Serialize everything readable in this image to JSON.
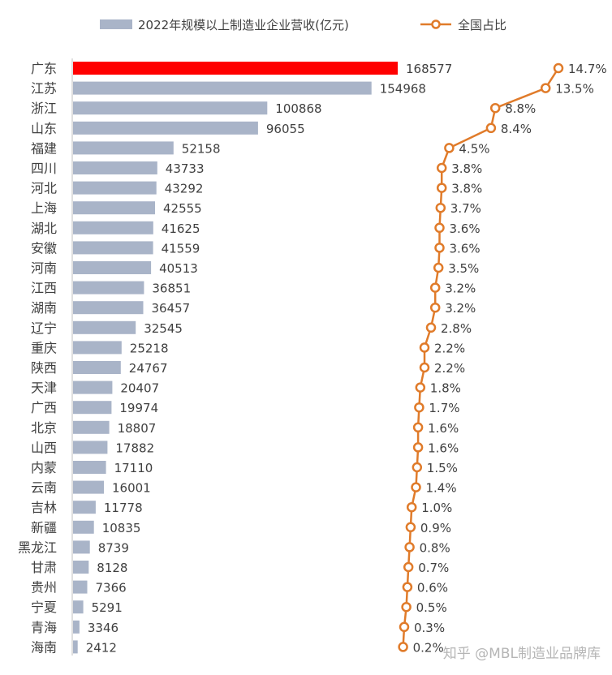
{
  "chart_data": {
    "type": "bar",
    "orientation": "horizontal",
    "categories": [
      "广东",
      "江苏",
      "浙江",
      "山东",
      "福建",
      "四川",
      "河北",
      "上海",
      "湖北",
      "安徽",
      "河南",
      "江西",
      "湖南",
      "辽宁",
      "重庆",
      "陕西",
      "天津",
      "广西",
      "北京",
      "山西",
      "内蒙",
      "云南",
      "吉林",
      "新疆",
      "黑龙江",
      "甘肃",
      "贵州",
      "宁夏",
      "青海",
      "海南"
    ],
    "series": [
      {
        "name": "2022年规模以上制造业企业营收(亿元)",
        "type": "bar",
        "color": "#a9b4c8",
        "highlight_color": "#ff0000",
        "highlight_index": 0,
        "values": [
          168577,
          154968,
          100868,
          96055,
          52158,
          43733,
          43292,
          42555,
          41625,
          41559,
          40513,
          36851,
          36457,
          32545,
          25218,
          24767,
          20407,
          19974,
          18807,
          17882,
          17110,
          16001,
          11778,
          10835,
          8739,
          8128,
          7366,
          5291,
          3346,
          2412
        ],
        "labels": [
          "168577",
          "154968",
          "100868",
          "96055",
          "52158",
          "43733",
          "43292",
          "42555",
          "41625",
          "41559",
          "40513",
          "36851",
          "36457",
          "32545",
          "25218",
          "24767",
          "20407",
          "19974",
          "18807",
          "17882",
          "17110",
          "16001",
          "11778",
          "10835",
          "8739",
          "8128",
          "7366",
          "5291",
          "3346",
          "2412"
        ]
      },
      {
        "name": "全国占比",
        "type": "line",
        "color": "#e07b2a",
        "values": [
          14.7,
          13.5,
          8.8,
          8.4,
          4.5,
          3.8,
          3.8,
          3.7,
          3.6,
          3.6,
          3.5,
          3.2,
          3.2,
          2.8,
          2.2,
          2.2,
          1.8,
          1.7,
          1.6,
          1.6,
          1.5,
          1.4,
          1.0,
          0.9,
          0.8,
          0.7,
          0.6,
          0.5,
          0.3,
          0.2
        ],
        "labels": [
          "14.7%",
          "13.5%",
          "8.8%",
          "8.4%",
          "4.5%",
          "3.8%",
          "3.8%",
          "3.7%",
          "3.6%",
          "3.6%",
          "3.5%",
          "3.2%",
          "3.2%",
          "2.8%",
          "2.2%",
          "2.2%",
          "1.8%",
          "1.7%",
          "1.6%",
          "1.6%",
          "1.5%",
          "1.4%",
          "1.0%",
          "0.9%",
          "0.8%",
          "0.7%",
          "0.6%",
          "0.5%",
          "0.3%",
          "0.2%"
        ]
      }
    ],
    "legend": "top"
  },
  "watermark": "知乎 @MBL制造业品牌库"
}
